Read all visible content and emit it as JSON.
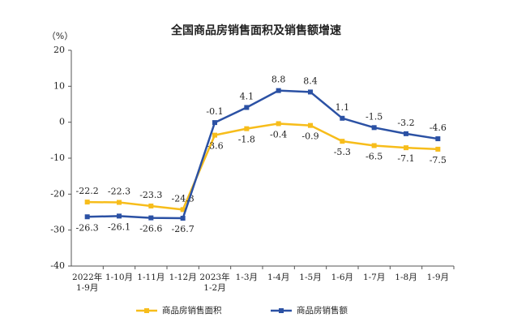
{
  "chart_data": {
    "type": "line",
    "title": "全国商品房销售面积及销售额增速",
    "y_unit": "（%）",
    "categories": [
      "2022年\n1-9月",
      "1-10月",
      "1-11月",
      "1-12月",
      "2023年\n1-2月",
      "1-3月",
      "1-4月",
      "1-5月",
      "1-6月",
      "1-7月",
      "1-8月",
      "1-9月"
    ],
    "series": [
      {
        "name": "商品房销售面积",
        "color": "#f7bd1b",
        "values": [
          -22.2,
          -22.3,
          -23.3,
          -24.3,
          -3.6,
          -1.8,
          -0.4,
          -0.9,
          -5.3,
          -6.5,
          -7.1,
          -7.5
        ]
      },
      {
        "name": "商品房销售额",
        "color": "#2b51a4",
        "values": [
          -26.3,
          -26.1,
          -26.6,
          -26.7,
          -0.1,
          4.1,
          8.8,
          8.4,
          1.1,
          -1.5,
          -3.2,
          -4.6
        ]
      }
    ],
    "ylim": [
      -40,
      20
    ],
    "yticks": [
      -40,
      -30,
      -20,
      -10,
      0,
      10,
      20
    ],
    "grid": false
  }
}
